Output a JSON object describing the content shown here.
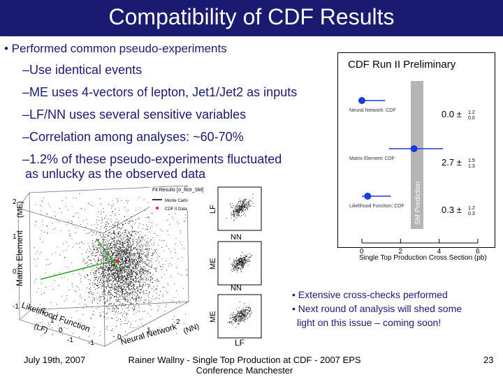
{
  "slide": {
    "title": "Compatibility of CDF Results",
    "bullet_main": "• Performed common pseudo-experiments",
    "sub_bullets": [
      "Use identical events",
      "ME uses 4-vectors of lepton, Jet1/Jet2 as inputs",
      "LF/NN uses several sensitive variables",
      "Correlation among analyses: ~60-70%",
      "1.2% of these pseudo-experiments fluctuated",
      "as unlucky as the observed data"
    ],
    "dash": "–",
    "right_bullets": [
      "• Extensive cross-checks performed",
      "• Next round of analysis will shed some",
      "light on this issue – coming soon!"
    ],
    "footer": {
      "date": "July 19th, 2007",
      "center_line1": "Rainer Wallny - Single Top Production at CDF - 2007 EPS",
      "center_line2": "Conference Manchester",
      "page": "23"
    }
  },
  "right_chart": {
    "title": "CDF Run II Preliminary",
    "band_label": "SM Prediction",
    "xlabel": "Single Top Production Cross Section (pb)",
    "xticks": [
      "0",
      "2",
      "4",
      "6"
    ],
    "rows": [
      {
        "name": "Neural Network: CDF",
        "value": 0.0,
        "plus": 1.2,
        "minus": 0.0,
        "value_label": "0.0 ±",
        "plus_label": "1.2",
        "minus_label": "0.0"
      },
      {
        "name": "Matrix Element: CDF",
        "value": 2.7,
        "plus": 1.5,
        "minus": 1.3,
        "value_label": "2.7 ±",
        "plus_label": "1.5",
        "minus_label": "1.3"
      },
      {
        "name": "Likelihood Function: CDF",
        "value": 0.3,
        "plus": 1.2,
        "minus": 0.3,
        "value_label": "0.3 ±",
        "plus_label": "1.2",
        "minus_label": "0.3"
      }
    ]
  },
  "scatter_3d": {
    "legend_title": "Fit Results [σ_fit/σ_SM]",
    "legend_items": [
      "Monte Carlo",
      "CDF II Data"
    ],
    "axis_me": "Matrix Element",
    "axis_me_tag": "(ME)",
    "axis_lf": "Likelihood Function",
    "axis_lf_tag": "(LF)",
    "axis_nn": "Neural Network",
    "axis_nn_tag": "(NN)",
    "ticks_vertical": [
      "2",
      "1",
      "0",
      "-1"
    ],
    "ticks_lf": [
      "2",
      "1",
      "0",
      "-1"
    ],
    "ticks_nn": [
      "-1",
      "0",
      "1",
      "2"
    ]
  },
  "panels": {
    "labels": [
      "LF",
      "NN",
      "ME",
      "NN",
      "ME",
      "LF"
    ]
  }
}
